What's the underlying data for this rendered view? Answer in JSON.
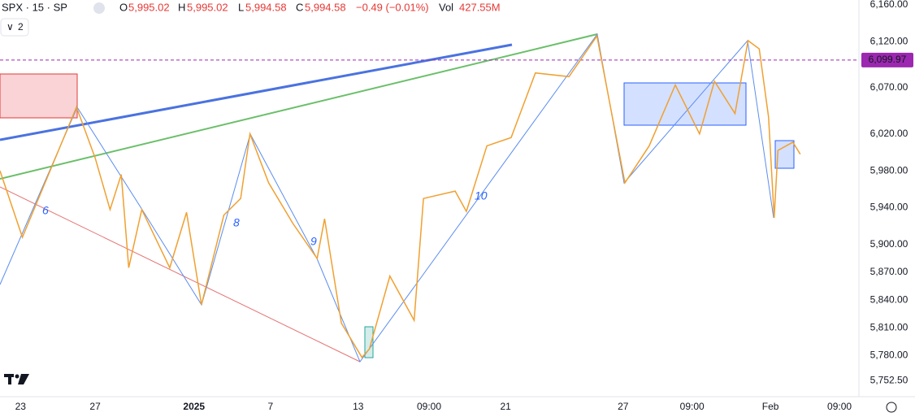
{
  "header": {
    "symbol": "SPX · 15 · SP",
    "interval_button": "2",
    "open_label": "O",
    "open": "5,995.02",
    "high_label": "H",
    "high": "5,995.02",
    "low_label": "L",
    "low": "5,994.58",
    "close_label": "C",
    "close": "5,994.58",
    "change": "−0.49 (−0.01%)",
    "volume_label": "Vol",
    "volume": "427.55M"
  },
  "chart_data": {
    "type": "line",
    "color": "#f0a030",
    "x": [
      0,
      12,
      26,
      41,
      51,
      59,
      65,
      69,
      76,
      91,
      100,
      108,
      120,
      129,
      134,
      144,
      157,
      170,
      174,
      183,
      194,
      198,
      209,
      222,
      227,
      244,
      250,
      261,
      274,
      287,
      305,
      320,
      335,
      348,
      362,
      375,
      383,
      394,
      401,
      407,
      412,
      415,
      417,
      425,
      429
    ],
    "values": [
      5980,
      5908,
      5976,
      6049,
      5994,
      5938,
      5976,
      5875,
      5938,
      5875,
      5935,
      5835,
      5932,
      5950,
      6020,
      5967,
      5923,
      5885,
      5928,
      5815,
      5778,
      5787,
      5866,
      5818,
      5950,
      5958,
      5936,
      6007,
      6016,
      6086,
      6082,
      6126,
      5967,
      6007,
      6073,
      6020,
      6077,
      6042,
      6121,
      6112,
      6038,
      5929,
      6002,
      6011,
      5998
    ],
    "xlim": [
      0,
      460
    ],
    "xticks": [
      {
        "value": 11,
        "label": "23"
      },
      {
        "value": 51,
        "label": "27"
      },
      {
        "value": 104,
        "label": "2025"
      },
      {
        "value": 145,
        "label": "7"
      },
      {
        "value": 192,
        "label": "13"
      },
      {
        "value": 230,
        "label": "09:00"
      },
      {
        "value": 271,
        "label": "21"
      },
      {
        "value": 334,
        "label": "27"
      },
      {
        "value": 371,
        "label": "09:00"
      },
      {
        "value": 413,
        "label": "Feb"
      },
      {
        "value": 450,
        "label": "09:00"
      }
    ],
    "ylim": [
      5738,
      6165
    ],
    "yticks": [
      {
        "value": 6160,
        "label": "6,160.00"
      },
      {
        "value": 6120,
        "label": "6,120.00"
      },
      {
        "value": 6070,
        "label": "6,070.00"
      },
      {
        "value": 6020,
        "label": "6,020.00"
      },
      {
        "value": 5980,
        "label": "5,980.00"
      },
      {
        "value": 5940,
        "label": "5,940.00"
      },
      {
        "value": 5900,
        "label": "5,900.00"
      },
      {
        "value": 5870,
        "label": "5,870.00"
      },
      {
        "value": 5840,
        "label": "5,840.00"
      },
      {
        "value": 5810,
        "label": "5,810.00"
      },
      {
        "value": 5780,
        "label": "5,780.00"
      },
      {
        "value": 5752.5,
        "label": "5,752.50"
      }
    ],
    "price_line": {
      "value": 6099.97,
      "label": "6,099.97",
      "color": "#9c27b0"
    },
    "annotations": [
      "6",
      "8",
      "9",
      "10"
    ]
  }
}
